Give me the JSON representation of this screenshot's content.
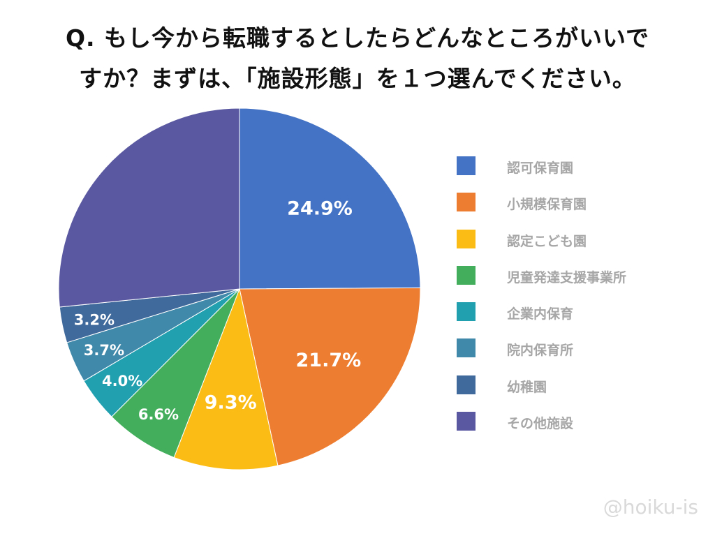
{
  "title_line1": "Q. もし今から転職するとしたらどんなところがいいで",
  "title_line2": "すか？まずは、「施設形態」を１つ選んでください。",
  "watermark": "@hoiku-is",
  "chart_data": {
    "type": "pie",
    "title": "Q. もし今から転職するとしたらどんなところがいいですか？まずは、「施設形態」を１つ選んでください。",
    "start": "top",
    "direction": "clockwise",
    "legend_placement": "right",
    "categories": [
      "認可保育園",
      "小規模保育園",
      "認定こども園",
      "児童発達支援事業所",
      "企業内保育",
      "院内保育所",
      "幼稚園",
      "その他施設"
    ],
    "values": [
      24.9,
      21.7,
      9.3,
      6.6,
      4.0,
      3.7,
      3.2,
      26.6
    ],
    "data_labels": [
      "24.9%",
      "21.7%",
      "9.3%",
      "6.6%",
      "4.0%",
      "3.7%",
      "3.2%",
      ""
    ],
    "colors": [
      "#4472C4",
      "#ED7D31",
      "#FBBC16",
      "#43AE5C",
      "#21A0B0",
      "#4189AA",
      "#416A9C",
      "#5A58A0"
    ]
  }
}
